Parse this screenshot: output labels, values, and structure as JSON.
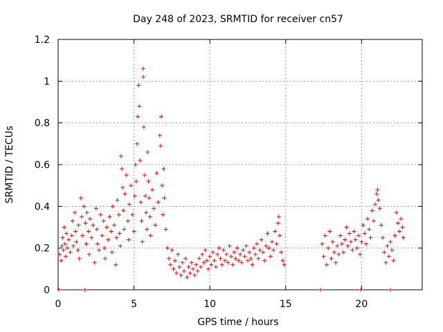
{
  "chart_data": {
    "type": "scatter",
    "title": "Day 248 of 2023, SRMTID for receiver cn57",
    "xlabel": "GPS time / hours",
    "ylabel": "SRMTID / TECUs",
    "xlim": [
      0,
      24
    ],
    "ylim": [
      0,
      1.2
    ],
    "xticks": [
      0,
      5,
      10,
      15,
      20
    ],
    "xtick_labels": [
      "0",
      "5",
      "10",
      "15",
      "20"
    ],
    "yticks": [
      0,
      0.2,
      0.4,
      0.6,
      0.8,
      1,
      1.2
    ],
    "ytick_labels": [
      "0",
      "0.2",
      "0.4",
      "0.6",
      "0.8",
      "1",
      "1.2"
    ],
    "grid": true,
    "marker": "+",
    "series": [
      {
        "name": "SRMTID",
        "color": "#ff0000",
        "points": [
          [
            0.05,
            0.0
          ],
          [
            1.75,
            0.0
          ],
          [
            17.3,
            0.0
          ],
          [
            19.95,
            0.0
          ],
          [
            21.9,
            0.0
          ],
          [
            0.1,
            0.17
          ],
          [
            0.2,
            0.14
          ],
          [
            0.25,
            0.21
          ],
          [
            0.3,
            0.25
          ],
          [
            0.35,
            0.19
          ],
          [
            0.4,
            0.3
          ],
          [
            0.45,
            0.22
          ],
          [
            0.5,
            0.16
          ],
          [
            0.55,
            0.27
          ],
          [
            0.6,
            0.2
          ],
          [
            0.7,
            0.24
          ],
          [
            0.8,
            0.18
          ],
          [
            0.9,
            0.26
          ],
          [
            0.95,
            0.33
          ],
          [
            1.0,
            0.21
          ],
          [
            1.1,
            0.37
          ],
          [
            1.15,
            0.28
          ],
          [
            1.2,
            0.23
          ],
          [
            1.3,
            0.19
          ],
          [
            1.35,
            0.31
          ],
          [
            1.4,
            0.15
          ],
          [
            1.5,
            0.44
          ],
          [
            1.55,
            0.35
          ],
          [
            1.6,
            0.26
          ],
          [
            1.7,
            0.4
          ],
          [
            1.8,
            0.32
          ],
          [
            1.85,
            0.22
          ],
          [
            1.9,
            0.37
          ],
          [
            2.0,
            0.28
          ],
          [
            2.05,
            0.17
          ],
          [
            2.1,
            0.34
          ],
          [
            2.2,
            0.25
          ],
          [
            2.3,
            0.31
          ],
          [
            2.4,
            0.13
          ],
          [
            2.5,
            0.39
          ],
          [
            2.55,
            0.29
          ],
          [
            2.6,
            0.22
          ],
          [
            2.7,
            0.19
          ],
          [
            2.8,
            0.36
          ],
          [
            2.9,
            0.26
          ],
          [
            3.0,
            0.33
          ],
          [
            3.05,
            0.2
          ],
          [
            3.1,
            0.15
          ],
          [
            3.2,
            0.3
          ],
          [
            3.3,
            0.24
          ],
          [
            3.4,
            0.35
          ],
          [
            3.5,
            0.28
          ],
          [
            3.55,
            0.18
          ],
          [
            3.6,
            0.4
          ],
          [
            3.7,
            0.31
          ],
          [
            3.8,
            0.12
          ],
          [
            3.85,
            0.25
          ],
          [
            3.9,
            0.43
          ],
          [
            4.0,
            0.36
          ],
          [
            4.05,
            0.27
          ],
          [
            4.1,
            0.21
          ],
          [
            4.15,
            0.64
          ],
          [
            4.2,
            0.58
          ],
          [
            4.25,
            0.49
          ],
          [
            4.3,
            0.38
          ],
          [
            4.35,
            0.29
          ],
          [
            4.4,
            0.46
          ],
          [
            4.5,
            0.55
          ],
          [
            4.6,
            0.33
          ],
          [
            4.65,
            0.24
          ],
          [
            4.7,
            0.41
          ],
          [
            4.8,
            0.5
          ],
          [
            4.9,
            0.36
          ],
          [
            5.0,
            0.28
          ],
          [
            5.05,
            0.45
          ],
          [
            5.1,
            0.6
          ],
          [
            5.15,
            0.52
          ],
          [
            5.2,
            0.7
          ],
          [
            5.25,
            0.83
          ],
          [
            5.3,
            0.98
          ],
          [
            5.35,
            0.88
          ],
          [
            5.4,
            0.62
          ],
          [
            5.45,
            0.42
          ],
          [
            5.5,
            0.33
          ],
          [
            5.55,
            0.23
          ],
          [
            5.6,
            1.06
          ],
          [
            5.62,
            1.02
          ],
          [
            5.65,
            0.78
          ],
          [
            5.7,
            0.55
          ],
          [
            5.75,
            0.45
          ],
          [
            5.8,
            0.37
          ],
          [
            5.85,
            0.29
          ],
          [
            5.9,
            0.66
          ],
          [
            5.95,
            0.52
          ],
          [
            6.0,
            0.44
          ],
          [
            6.05,
            0.35
          ],
          [
            6.1,
            0.26
          ],
          [
            6.2,
            0.48
          ],
          [
            6.3,
            0.39
          ],
          [
            6.4,
            0.31
          ],
          [
            6.5,
            0.56
          ],
          [
            6.6,
            0.42
          ],
          [
            6.7,
            0.74
          ],
          [
            6.75,
            0.69
          ],
          [
            6.8,
            0.83
          ],
          [
            6.85,
            0.5
          ],
          [
            6.9,
            0.36
          ],
          [
            6.95,
            0.58
          ],
          [
            7.0,
            0.44
          ],
          [
            7.1,
            0.29
          ],
          [
            7.2,
            0.2
          ],
          [
            7.3,
            0.15
          ],
          [
            7.4,
            0.12
          ],
          [
            7.5,
            0.19
          ],
          [
            7.6,
            0.1
          ],
          [
            7.7,
            0.14
          ],
          [
            7.8,
            0.08
          ],
          [
            7.9,
            0.17
          ],
          [
            8.0,
            0.11
          ],
          [
            8.1,
            0.07
          ],
          [
            8.2,
            0.13
          ],
          [
            8.3,
            0.09
          ],
          [
            8.4,
            0.15
          ],
          [
            8.5,
            0.06
          ],
          [
            8.6,
            0.11
          ],
          [
            8.7,
            0.08
          ],
          [
            8.8,
            0.13
          ],
          [
            8.9,
            0.1
          ],
          [
            9.0,
            0.07
          ],
          [
            9.1,
            0.12
          ],
          [
            9.2,
            0.09
          ],
          [
            9.3,
            0.15
          ],
          [
            9.4,
            0.11
          ],
          [
            9.5,
            0.17
          ],
          [
            9.6,
            0.13
          ],
          [
            9.7,
            0.19
          ],
          [
            9.8,
            0.14
          ],
          [
            9.9,
            0.1
          ],
          [
            10.0,
            0.16
          ],
          [
            10.1,
            0.12
          ],
          [
            10.2,
            0.18
          ],
          [
            10.3,
            0.14
          ],
          [
            10.4,
            0.11
          ],
          [
            10.5,
            0.17
          ],
          [
            10.6,
            0.2
          ],
          [
            10.7,
            0.15
          ],
          [
            10.8,
            0.12
          ],
          [
            10.9,
            0.19
          ],
          [
            11.0,
            0.14
          ],
          [
            11.1,
            0.17
          ],
          [
            11.2,
            0.13
          ],
          [
            11.3,
            0.21
          ],
          [
            11.4,
            0.16
          ],
          [
            11.5,
            0.12
          ],
          [
            11.6,
            0.18
          ],
          [
            11.7,
            0.15
          ],
          [
            11.8,
            0.2
          ],
          [
            11.9,
            0.14
          ],
          [
            12.0,
            0.17
          ],
          [
            12.1,
            0.13
          ],
          [
            12.2,
            0.19
          ],
          [
            12.3,
            0.16
          ],
          [
            12.4,
            0.21
          ],
          [
            12.5,
            0.14
          ],
          [
            12.6,
            0.18
          ],
          [
            12.7,
            0.15
          ],
          [
            12.8,
            0.12
          ],
          [
            12.9,
            0.2
          ],
          [
            13.0,
            0.17
          ],
          [
            13.1,
            0.22
          ],
          [
            13.2,
            0.15
          ],
          [
            13.3,
            0.19
          ],
          [
            13.4,
            0.24
          ],
          [
            13.5,
            0.18
          ],
          [
            13.6,
            0.14
          ],
          [
            13.7,
            0.21
          ],
          [
            13.8,
            0.27
          ],
          [
            13.9,
            0.2
          ],
          [
            14.0,
            0.16
          ],
          [
            14.1,
            0.23
          ],
          [
            14.2,
            0.19
          ],
          [
            14.3,
            0.28
          ],
          [
            14.4,
            0.22
          ],
          [
            14.5,
            0.32
          ],
          [
            14.55,
            0.35
          ],
          [
            14.6,
            0.26
          ],
          [
            14.7,
            0.18
          ],
          [
            14.8,
            0.14
          ],
          [
            14.9,
            0.12
          ],
          [
            17.4,
            0.22
          ],
          [
            17.5,
            0.16
          ],
          [
            17.6,
            0.26
          ],
          [
            17.7,
            0.12
          ],
          [
            17.8,
            0.2
          ],
          [
            17.9,
            0.28
          ],
          [
            18.0,
            0.15
          ],
          [
            18.1,
            0.23
          ],
          [
            18.2,
            0.18
          ],
          [
            18.3,
            0.13
          ],
          [
            18.4,
            0.21
          ],
          [
            18.5,
            0.17
          ],
          [
            18.6,
            0.26
          ],
          [
            18.7,
            0.22
          ],
          [
            18.8,
            0.18
          ],
          [
            18.9,
            0.24
          ],
          [
            19.0,
            0.3
          ],
          [
            19.1,
            0.21
          ],
          [
            19.2,
            0.27
          ],
          [
            19.3,
            0.23
          ],
          [
            19.4,
            0.19
          ],
          [
            19.5,
            0.28
          ],
          [
            19.6,
            0.24
          ],
          [
            19.7,
            0.2
          ],
          [
            19.8,
            0.26
          ],
          [
            19.9,
            0.17
          ],
          [
            20.0,
            0.23
          ],
          [
            20.1,
            0.31
          ],
          [
            20.2,
            0.27
          ],
          [
            20.3,
            0.22
          ],
          [
            20.4,
            0.34
          ],
          [
            20.5,
            0.29
          ],
          [
            20.6,
            0.25
          ],
          [
            20.7,
            0.38
          ],
          [
            20.8,
            0.33
          ],
          [
            20.9,
            0.41
          ],
          [
            21.0,
            0.46
          ],
          [
            21.05,
            0.48
          ],
          [
            21.1,
            0.43
          ],
          [
            21.2,
            0.39
          ],
          [
            21.3,
            0.31
          ],
          [
            21.4,
            0.25
          ],
          [
            21.5,
            0.18
          ],
          [
            21.6,
            0.13
          ],
          [
            21.7,
            0.21
          ],
          [
            21.8,
            0.16
          ],
          [
            21.9,
            0.23
          ],
          [
            22.0,
            0.19
          ],
          [
            22.1,
            0.14
          ],
          [
            22.2,
            0.26
          ],
          [
            22.3,
            0.37
          ],
          [
            22.4,
            0.32
          ],
          [
            22.5,
            0.28
          ],
          [
            22.6,
            0.34
          ],
          [
            22.7,
            0.3
          ],
          [
            22.75,
            0.25
          ]
        ]
      }
    ]
  }
}
